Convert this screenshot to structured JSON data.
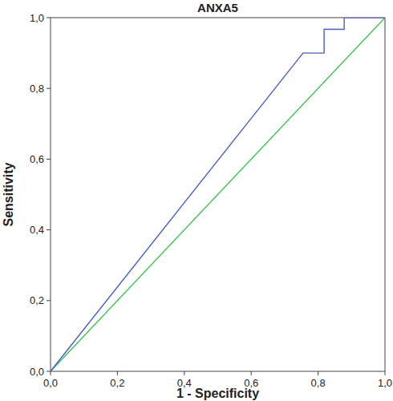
{
  "chart_data": {
    "type": "line",
    "title": "ANXA5",
    "x_label": "1 - Specificity",
    "y_label": "Sensitivity",
    "xlim": [
      0,
      1
    ],
    "ylim": [
      0,
      1
    ],
    "xticks": [
      {
        "value": 0,
        "label": "0,0"
      },
      {
        "value": 0.2,
        "label": "0,2"
      },
      {
        "value": 0.4,
        "label": "0,4"
      },
      {
        "value": 0.6,
        "label": "0,6"
      },
      {
        "value": 0.8,
        "label": "0,8"
      },
      {
        "value": 1,
        "label": "1,0"
      }
    ],
    "yticks": [
      {
        "value": 0,
        "label": "0,0"
      },
      {
        "value": 0.2,
        "label": "0,2"
      },
      {
        "value": 0.4,
        "label": "0,4"
      },
      {
        "value": 0.6,
        "label": "0,6"
      },
      {
        "value": 0.8,
        "label": "0,8"
      },
      {
        "value": 1,
        "label": "1,0"
      }
    ],
    "grid": false,
    "series": [
      {
        "color": "#4a5ec4",
        "x": [
          0,
          0.755,
          0.818,
          0.818,
          0.878,
          0.878,
          1
        ],
        "values": [
          0,
          0.9,
          0.9,
          0.967,
          0.967,
          1,
          1
        ]
      },
      {
        "color": "#3ec24f",
        "x": [
          0,
          1
        ],
        "values": [
          0,
          1
        ]
      }
    ]
  }
}
